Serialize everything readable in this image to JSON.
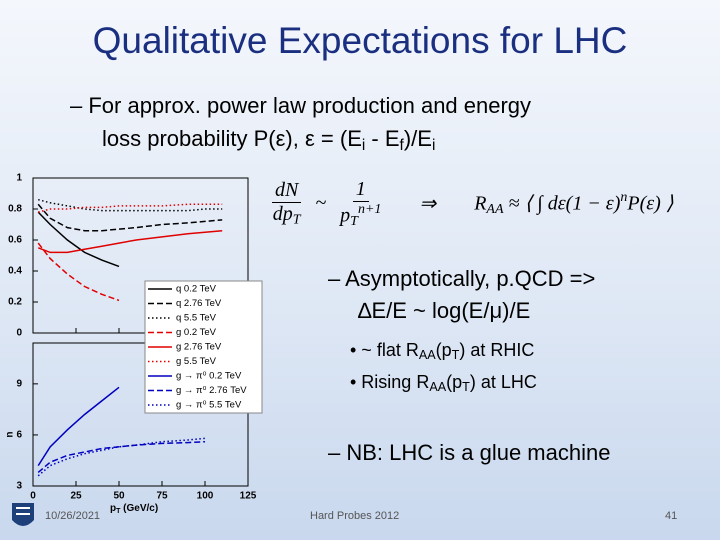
{
  "slide": {
    "title": "Qualitative Expectations for LHC",
    "bullets": [
      {
        "lines": [
          [
            {
              "text": "– For approx. power law production and energy"
            }
          ],
          [
            {
              "text": "loss probability P(ε), ε = (E"
            },
            {
              "text": "i",
              "sub": true
            },
            {
              "text": " - E"
            },
            {
              "text": "f",
              "sub": true
            },
            {
              "text": ")/E"
            },
            {
              "text": "i",
              "sub": true
            }
          ]
        ]
      },
      {
        "lines": [
          [
            {
              "text": "– Asymptotically, p.QCD =>"
            }
          ],
          [
            {
              "text": "∆E/E ~ log(E/μ)/E"
            }
          ]
        ]
      },
      {
        "lines": [
          [
            {
              "text": "• ~ flat R"
            },
            {
              "text": "AA",
              "sub": true
            },
            {
              "text": "(p"
            },
            {
              "text": "T",
              "sub": true
            },
            {
              "text": ") at RHIC"
            }
          ],
          [
            {
              "text": "• Rising R"
            },
            {
              "text": "AA",
              "sub": true
            },
            {
              "text": "(p"
            },
            {
              "text": "T",
              "sub": true
            },
            {
              "text": ") at LHC"
            }
          ]
        ]
      },
      {
        "lines": [
          [
            {
              "text": "– NB: LHC is a glue machine"
            }
          ]
        ]
      }
    ],
    "equation": {
      "lhs": {
        "num": [
          {
            "text": "dN"
          }
        ],
        "den": [
          {
            "text": "dp"
          },
          {
            "text": "T",
            "sub": true
          }
        ]
      },
      "sim": "~",
      "rhs": {
        "num": [
          {
            "text": "1"
          }
        ],
        "den": [
          {
            "text": "p"
          },
          {
            "text": "T",
            "sub": true
          },
          {
            "text": "n+1",
            "sup": true
          }
        ]
      },
      "implies": "⇒",
      "result": [
        {
          "text": "R"
        },
        {
          "text": "AA",
          "sub": true
        },
        {
          "text": " ≈ ⟨ ∫ dε(1 − ε)"
        },
        {
          "text": "n",
          "sup": true
        },
        {
          "text": "P(ε) ⟩"
        }
      ]
    },
    "footer": {
      "date": "10/26/2021",
      "event": "Hard Probes 2012",
      "page": "41"
    }
  },
  "figure": {
    "xlim": [
      0,
      125
    ],
    "xticks": [
      0,
      25,
      50,
      75,
      100,
      125
    ],
    "xlabel": [
      {
        "text": "p"
      },
      {
        "text": "T",
        "sub": true
      },
      {
        "text": " (GeV/c)"
      }
    ],
    "panels": [
      {
        "ylim": [
          0,
          1
        ],
        "yticks": [
          0,
          0.2,
          0.4,
          0.6,
          0.8,
          1
        ],
        "x": [
          3,
          10,
          20,
          30,
          40,
          50,
          60,
          75,
          90,
          100,
          110
        ],
        "series": [
          {
            "name": "q 0.2 TeV",
            "color": "#000000",
            "dash": "solid",
            "values": [
              0.78,
              0.7,
              0.6,
              0.52,
              0.47,
              0.43,
              null,
              null,
              null,
              null,
              null
            ]
          },
          {
            "name": "q 2.76 TeV",
            "color": "#000000",
            "dash": "dashed",
            "values": [
              0.83,
              0.74,
              0.68,
              0.66,
              0.66,
              0.67,
              0.68,
              0.7,
              0.71,
              0.72,
              0.73
            ]
          },
          {
            "name": "q 5.5 TeV",
            "color": "#000000",
            "dash": "dotted",
            "values": [
              0.86,
              0.84,
              0.82,
              0.8,
              0.79,
              0.79,
              0.79,
              0.79,
              0.79,
              0.8,
              0.8
            ]
          },
          {
            "name": "g 0.2 TeV",
            "color": "#e00000",
            "dash": "dashed",
            "values": [
              0.58,
              0.48,
              0.38,
              0.3,
              0.25,
              0.21,
              null,
              null,
              null,
              null,
              null
            ]
          },
          {
            "name": "g 2.76 TeV",
            "color": "#e00000",
            "dash": "solid",
            "values": [
              0.55,
              0.52,
              0.52,
              0.54,
              0.56,
              0.58,
              0.6,
              0.62,
              0.64,
              0.65,
              0.66
            ]
          },
          {
            "name": "g 5.5 TeV",
            "color": "#e00000",
            "dash": "dotted",
            "values": [
              0.78,
              0.8,
              0.8,
              0.81,
              0.81,
              0.82,
              0.82,
              0.82,
              0.83,
              0.83,
              0.83
            ]
          }
        ]
      },
      {
        "ylabel": "n",
        "ylim": [
          3,
          11.4
        ],
        "yticks": [
          3,
          6,
          9
        ],
        "x": [
          3,
          10,
          20,
          30,
          40,
          50,
          60,
          75,
          90,
          100
        ],
        "series": [
          {
            "name": "g → π⁰ 0.2 TeV",
            "color": "#0000c0",
            "dash": "solid",
            "values": [
              4.2,
              5.3,
              6.3,
              7.2,
              8.0,
              8.8,
              null,
              null,
              null,
              null
            ]
          },
          {
            "name": "g → π⁰ 2.76 TeV",
            "color": "#0000c0",
            "dash": "dashed",
            "values": [
              3.8,
              4.4,
              4.8,
              5.0,
              5.2,
              5.3,
              5.4,
              5.5,
              5.55,
              5.6
            ]
          },
          {
            "name": "g → π⁰ 5.5 TeV",
            "color": "#0000c0",
            "dash": "dotted",
            "values": [
              3.6,
              4.2,
              4.6,
              4.9,
              5.1,
              5.3,
              5.4,
              5.6,
              5.7,
              5.8
            ]
          }
        ]
      }
    ]
  }
}
